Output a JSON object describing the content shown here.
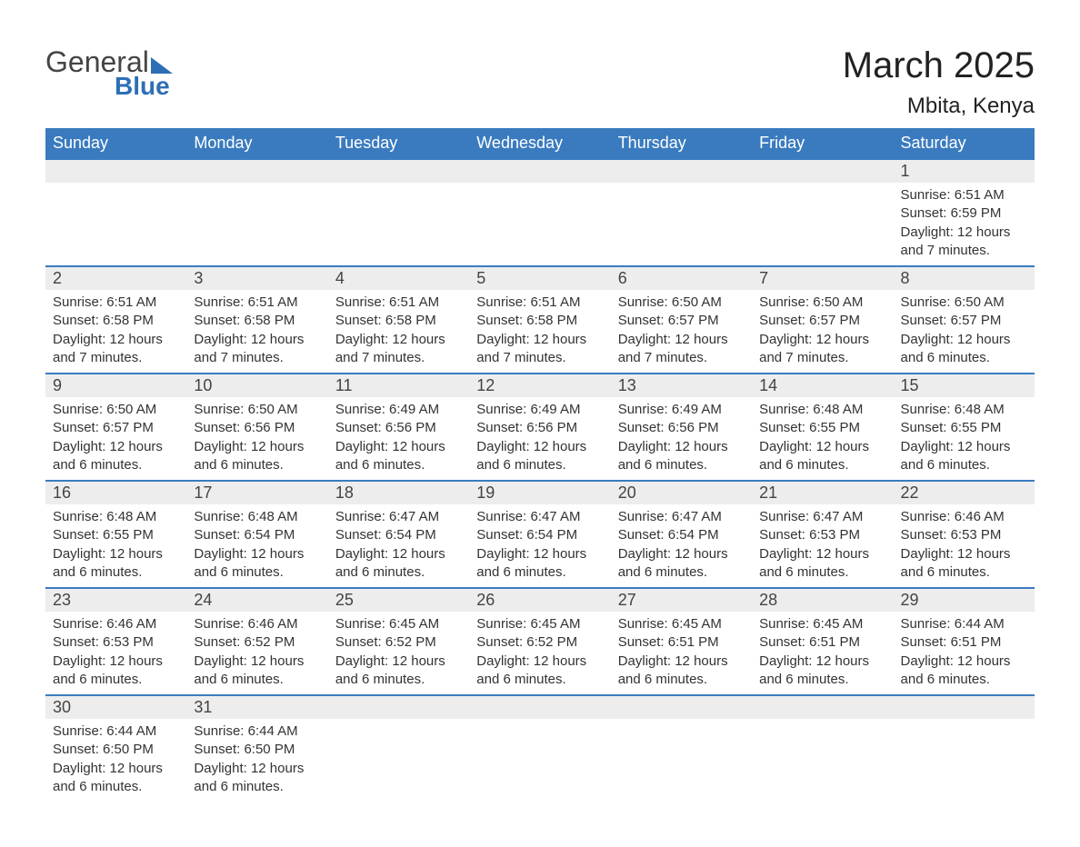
{
  "logo": {
    "text1": "General",
    "text2": "Blue",
    "color": "#2d6fb5"
  },
  "title": "March 2025",
  "location": "Mbita, Kenya",
  "header_bg": "#3a7bbf",
  "daynum_bg": "#ededed",
  "border_color": "#3a7bbf",
  "days_of_week": [
    "Sunday",
    "Monday",
    "Tuesday",
    "Wednesday",
    "Thursday",
    "Friday",
    "Saturday"
  ],
  "weeks": [
    [
      null,
      null,
      null,
      null,
      null,
      null,
      {
        "n": "1",
        "sr": "Sunrise: 6:51 AM",
        "ss": "Sunset: 6:59 PM",
        "dl": "Daylight: 12 hours and 7 minutes."
      }
    ],
    [
      {
        "n": "2",
        "sr": "Sunrise: 6:51 AM",
        "ss": "Sunset: 6:58 PM",
        "dl": "Daylight: 12 hours and 7 minutes."
      },
      {
        "n": "3",
        "sr": "Sunrise: 6:51 AM",
        "ss": "Sunset: 6:58 PM",
        "dl": "Daylight: 12 hours and 7 minutes."
      },
      {
        "n": "4",
        "sr": "Sunrise: 6:51 AM",
        "ss": "Sunset: 6:58 PM",
        "dl": "Daylight: 12 hours and 7 minutes."
      },
      {
        "n": "5",
        "sr": "Sunrise: 6:51 AM",
        "ss": "Sunset: 6:58 PM",
        "dl": "Daylight: 12 hours and 7 minutes."
      },
      {
        "n": "6",
        "sr": "Sunrise: 6:50 AM",
        "ss": "Sunset: 6:57 PM",
        "dl": "Daylight: 12 hours and 7 minutes."
      },
      {
        "n": "7",
        "sr": "Sunrise: 6:50 AM",
        "ss": "Sunset: 6:57 PM",
        "dl": "Daylight: 12 hours and 7 minutes."
      },
      {
        "n": "8",
        "sr": "Sunrise: 6:50 AM",
        "ss": "Sunset: 6:57 PM",
        "dl": "Daylight: 12 hours and 6 minutes."
      }
    ],
    [
      {
        "n": "9",
        "sr": "Sunrise: 6:50 AM",
        "ss": "Sunset: 6:57 PM",
        "dl": "Daylight: 12 hours and 6 minutes."
      },
      {
        "n": "10",
        "sr": "Sunrise: 6:50 AM",
        "ss": "Sunset: 6:56 PM",
        "dl": "Daylight: 12 hours and 6 minutes."
      },
      {
        "n": "11",
        "sr": "Sunrise: 6:49 AM",
        "ss": "Sunset: 6:56 PM",
        "dl": "Daylight: 12 hours and 6 minutes."
      },
      {
        "n": "12",
        "sr": "Sunrise: 6:49 AM",
        "ss": "Sunset: 6:56 PM",
        "dl": "Daylight: 12 hours and 6 minutes."
      },
      {
        "n": "13",
        "sr": "Sunrise: 6:49 AM",
        "ss": "Sunset: 6:56 PM",
        "dl": "Daylight: 12 hours and 6 minutes."
      },
      {
        "n": "14",
        "sr": "Sunrise: 6:48 AM",
        "ss": "Sunset: 6:55 PM",
        "dl": "Daylight: 12 hours and 6 minutes."
      },
      {
        "n": "15",
        "sr": "Sunrise: 6:48 AM",
        "ss": "Sunset: 6:55 PM",
        "dl": "Daylight: 12 hours and 6 minutes."
      }
    ],
    [
      {
        "n": "16",
        "sr": "Sunrise: 6:48 AM",
        "ss": "Sunset: 6:55 PM",
        "dl": "Daylight: 12 hours and 6 minutes."
      },
      {
        "n": "17",
        "sr": "Sunrise: 6:48 AM",
        "ss": "Sunset: 6:54 PM",
        "dl": "Daylight: 12 hours and 6 minutes."
      },
      {
        "n": "18",
        "sr": "Sunrise: 6:47 AM",
        "ss": "Sunset: 6:54 PM",
        "dl": "Daylight: 12 hours and 6 minutes."
      },
      {
        "n": "19",
        "sr": "Sunrise: 6:47 AM",
        "ss": "Sunset: 6:54 PM",
        "dl": "Daylight: 12 hours and 6 minutes."
      },
      {
        "n": "20",
        "sr": "Sunrise: 6:47 AM",
        "ss": "Sunset: 6:54 PM",
        "dl": "Daylight: 12 hours and 6 minutes."
      },
      {
        "n": "21",
        "sr": "Sunrise: 6:47 AM",
        "ss": "Sunset: 6:53 PM",
        "dl": "Daylight: 12 hours and 6 minutes."
      },
      {
        "n": "22",
        "sr": "Sunrise: 6:46 AM",
        "ss": "Sunset: 6:53 PM",
        "dl": "Daylight: 12 hours and 6 minutes."
      }
    ],
    [
      {
        "n": "23",
        "sr": "Sunrise: 6:46 AM",
        "ss": "Sunset: 6:53 PM",
        "dl": "Daylight: 12 hours and 6 minutes."
      },
      {
        "n": "24",
        "sr": "Sunrise: 6:46 AM",
        "ss": "Sunset: 6:52 PM",
        "dl": "Daylight: 12 hours and 6 minutes."
      },
      {
        "n": "25",
        "sr": "Sunrise: 6:45 AM",
        "ss": "Sunset: 6:52 PM",
        "dl": "Daylight: 12 hours and 6 minutes."
      },
      {
        "n": "26",
        "sr": "Sunrise: 6:45 AM",
        "ss": "Sunset: 6:52 PM",
        "dl": "Daylight: 12 hours and 6 minutes."
      },
      {
        "n": "27",
        "sr": "Sunrise: 6:45 AM",
        "ss": "Sunset: 6:51 PM",
        "dl": "Daylight: 12 hours and 6 minutes."
      },
      {
        "n": "28",
        "sr": "Sunrise: 6:45 AM",
        "ss": "Sunset: 6:51 PM",
        "dl": "Daylight: 12 hours and 6 minutes."
      },
      {
        "n": "29",
        "sr": "Sunrise: 6:44 AM",
        "ss": "Sunset: 6:51 PM",
        "dl": "Daylight: 12 hours and 6 minutes."
      }
    ],
    [
      {
        "n": "30",
        "sr": "Sunrise: 6:44 AM",
        "ss": "Sunset: 6:50 PM",
        "dl": "Daylight: 12 hours and 6 minutes."
      },
      {
        "n": "31",
        "sr": "Sunrise: 6:44 AM",
        "ss": "Sunset: 6:50 PM",
        "dl": "Daylight: 12 hours and 6 minutes."
      },
      null,
      null,
      null,
      null,
      null
    ]
  ]
}
